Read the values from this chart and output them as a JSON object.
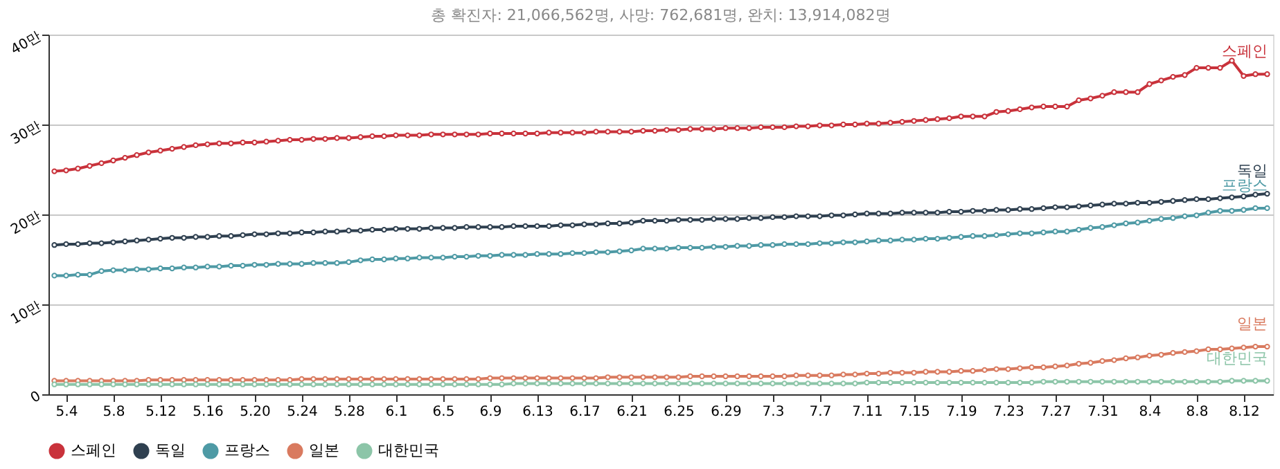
{
  "chart_data": {
    "type": "line",
    "subtitle": "총 확진자: 21,066,562명, 사망: 762,681명, 완치: 13,914,082명",
    "categories": [
      null,
      "5.4",
      null,
      null,
      null,
      "5.8",
      null,
      null,
      null,
      "5.12",
      null,
      null,
      null,
      "5.16",
      null,
      null,
      null,
      "5.20",
      null,
      null,
      null,
      "5.24",
      null,
      null,
      null,
      "5.28",
      null,
      null,
      null,
      "6.1",
      null,
      null,
      null,
      "6.5",
      null,
      null,
      null,
      "6.9",
      null,
      null,
      null,
      "6.13",
      null,
      null,
      null,
      "6.17",
      null,
      null,
      null,
      "6.21",
      null,
      null,
      null,
      "6.25",
      null,
      null,
      null,
      "6.29",
      null,
      null,
      null,
      "7.3",
      null,
      null,
      null,
      "7.7",
      null,
      null,
      null,
      "7.11",
      null,
      null,
      null,
      "7.15",
      null,
      null,
      null,
      "7.19",
      null,
      null,
      null,
      "7.23",
      null,
      null,
      null,
      "7.27",
      null,
      null,
      null,
      "7.31",
      null,
      null,
      null,
      "8.4",
      null,
      null,
      null,
      "8.8",
      null,
      null,
      null,
      "8.12",
      null,
      null
    ],
    "series": [
      {
        "name": "스페인",
        "color": "#c9323b",
        "values": [
          24.8,
          24.9,
          25.1,
          25.4,
          25.7,
          26.0,
          26.3,
          26.6,
          26.9,
          27.1,
          27.3,
          27.5,
          27.7,
          27.8,
          27.9,
          27.9,
          28.0,
          28.0,
          28.1,
          28.2,
          28.3,
          28.3,
          28.4,
          28.4,
          28.5,
          28.5,
          28.6,
          28.7,
          28.7,
          28.8,
          28.8,
          28.8,
          28.9,
          28.9,
          28.9,
          28.9,
          28.9,
          29.0,
          29.0,
          29.0,
          29.0,
          29.0,
          29.1,
          29.1,
          29.1,
          29.1,
          29.2,
          29.2,
          29.2,
          29.2,
          29.3,
          29.3,
          29.4,
          29.4,
          29.5,
          29.5,
          29.5,
          29.6,
          29.6,
          29.6,
          29.7,
          29.7,
          29.7,
          29.8,
          29.8,
          29.9,
          29.9,
          30.0,
          30.0,
          30.1,
          30.1,
          30.2,
          30.3,
          30.4,
          30.5,
          30.6,
          30.7,
          30.9,
          30.9,
          30.9,
          31.4,
          31.5,
          31.7,
          31.9,
          32.0,
          32.0,
          32.0,
          32.7,
          32.9,
          33.2,
          33.6,
          33.6,
          33.6,
          34.5,
          34.9,
          35.3,
          35.5,
          36.3,
          36.3,
          36.3,
          37.1,
          35.4,
          35.6,
          35.6
        ]
      },
      {
        "name": "독일",
        "color": "#2f4050",
        "values": [
          16.6,
          16.7,
          16.7,
          16.8,
          16.8,
          16.9,
          17.0,
          17.1,
          17.2,
          17.3,
          17.4,
          17.4,
          17.5,
          17.5,
          17.6,
          17.6,
          17.7,
          17.8,
          17.8,
          17.9,
          17.9,
          18.0,
          18.0,
          18.1,
          18.1,
          18.2,
          18.2,
          18.3,
          18.3,
          18.4,
          18.4,
          18.4,
          18.5,
          18.5,
          18.5,
          18.6,
          18.6,
          18.6,
          18.6,
          18.7,
          18.7,
          18.7,
          18.7,
          18.8,
          18.8,
          18.9,
          18.9,
          19.0,
          19.0,
          19.1,
          19.3,
          19.3,
          19.3,
          19.4,
          19.4,
          19.4,
          19.5,
          19.5,
          19.5,
          19.6,
          19.6,
          19.7,
          19.7,
          19.8,
          19.8,
          19.8,
          19.9,
          19.9,
          20.0,
          20.1,
          20.1,
          20.1,
          20.2,
          20.2,
          20.2,
          20.2,
          20.3,
          20.3,
          20.4,
          20.4,
          20.5,
          20.5,
          20.6,
          20.6,
          20.7,
          20.8,
          20.8,
          20.9,
          21.0,
          21.1,
          21.2,
          21.2,
          21.3,
          21.3,
          21.4,
          21.5,
          21.6,
          21.7,
          21.7,
          21.8,
          21.9,
          22.0,
          22.2,
          22.3
        ]
      },
      {
        "name": "프랑스",
        "color": "#4e9aa5",
        "values": [
          13.2,
          13.2,
          13.3,
          13.3,
          13.7,
          13.8,
          13.8,
          13.9,
          13.9,
          14.0,
          14.0,
          14.1,
          14.1,
          14.2,
          14.2,
          14.3,
          14.3,
          14.4,
          14.4,
          14.5,
          14.5,
          14.5,
          14.6,
          14.6,
          14.6,
          14.7,
          14.9,
          15.0,
          15.0,
          15.1,
          15.1,
          15.2,
          15.2,
          15.2,
          15.3,
          15.3,
          15.4,
          15.4,
          15.5,
          15.5,
          15.5,
          15.6,
          15.6,
          15.6,
          15.7,
          15.7,
          15.8,
          15.8,
          15.9,
          16.0,
          16.2,
          16.2,
          16.2,
          16.3,
          16.3,
          16.3,
          16.4,
          16.4,
          16.5,
          16.5,
          16.6,
          16.6,
          16.7,
          16.7,
          16.7,
          16.8,
          16.8,
          16.9,
          16.9,
          17.0,
          17.1,
          17.1,
          17.2,
          17.2,
          17.3,
          17.3,
          17.4,
          17.5,
          17.6,
          17.6,
          17.7,
          17.8,
          17.9,
          17.9,
          18.0,
          18.1,
          18.1,
          18.3,
          18.5,
          18.6,
          18.8,
          19.0,
          19.1,
          19.3,
          19.5,
          19.6,
          19.8,
          19.9,
          20.2,
          20.4,
          20.4,
          20.5,
          20.7,
          20.7
        ]
      },
      {
        "name": "일본",
        "color": "#d97a5f",
        "values": [
          1.5,
          1.5,
          1.5,
          1.5,
          1.5,
          1.5,
          1.5,
          1.5,
          1.6,
          1.6,
          1.6,
          1.6,
          1.6,
          1.6,
          1.6,
          1.6,
          1.6,
          1.6,
          1.6,
          1.6,
          1.6,
          1.7,
          1.7,
          1.7,
          1.7,
          1.7,
          1.7,
          1.7,
          1.7,
          1.7,
          1.7,
          1.7,
          1.7,
          1.7,
          1.7,
          1.7,
          1.7,
          1.8,
          1.8,
          1.8,
          1.8,
          1.8,
          1.8,
          1.8,
          1.8,
          1.8,
          1.8,
          1.9,
          1.9,
          1.9,
          1.9,
          1.9,
          1.9,
          1.9,
          2.0,
          2.0,
          2.0,
          2.0,
          2.0,
          2.0,
          2.0,
          2.0,
          2.0,
          2.1,
          2.1,
          2.1,
          2.1,
          2.2,
          2.2,
          2.3,
          2.3,
          2.4,
          2.4,
          2.4,
          2.5,
          2.5,
          2.5,
          2.6,
          2.6,
          2.7,
          2.8,
          2.8,
          2.9,
          3.0,
          3.0,
          3.1,
          3.2,
          3.4,
          3.5,
          3.7,
          3.8,
          4.0,
          4.1,
          4.3,
          4.4,
          4.6,
          4.7,
          4.8,
          5.0,
          5.0,
          5.1,
          5.2,
          5.3,
          5.3
        ]
      },
      {
        "name": "대한민국",
        "color": "#8cc5a8",
        "values": [
          1.1,
          1.1,
          1.1,
          1.1,
          1.1,
          1.1,
          1.1,
          1.1,
          1.1,
          1.1,
          1.1,
          1.1,
          1.1,
          1.1,
          1.1,
          1.1,
          1.1,
          1.1,
          1.1,
          1.1,
          1.1,
          1.1,
          1.1,
          1.1,
          1.1,
          1.1,
          1.1,
          1.1,
          1.1,
          1.1,
          1.1,
          1.1,
          1.1,
          1.1,
          1.1,
          1.1,
          1.1,
          1.1,
          1.1,
          1.2,
          1.2,
          1.2,
          1.2,
          1.2,
          1.2,
          1.2,
          1.2,
          1.2,
          1.2,
          1.2,
          1.2,
          1.2,
          1.2,
          1.2,
          1.2,
          1.2,
          1.2,
          1.2,
          1.2,
          1.2,
          1.2,
          1.2,
          1.2,
          1.2,
          1.2,
          1.2,
          1.2,
          1.2,
          1.2,
          1.3,
          1.3,
          1.3,
          1.3,
          1.3,
          1.3,
          1.3,
          1.3,
          1.3,
          1.3,
          1.3,
          1.3,
          1.3,
          1.3,
          1.3,
          1.4,
          1.4,
          1.4,
          1.4,
          1.4,
          1.4,
          1.4,
          1.4,
          1.4,
          1.4,
          1.4,
          1.4,
          1.4,
          1.4,
          1.4,
          1.4,
          1.5,
          1.5,
          1.5,
          1.5
        ]
      }
    ],
    "ylim": [
      0,
      40
    ],
    "yticks": [
      0,
      {
        "value": 10,
        "label": "10만"
      },
      {
        "value": 20,
        "label": "20만"
      },
      {
        "value": 30,
        "label": "30만"
      },
      {
        "value": 40,
        "label": "40만"
      }
    ],
    "grid": "y",
    "legend": "bottom",
    "marker": "circle",
    "line_style": "solid"
  }
}
